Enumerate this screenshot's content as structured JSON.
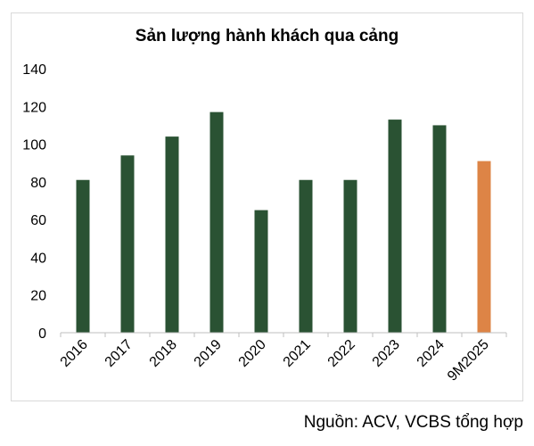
{
  "chart_data": {
    "type": "bar",
    "title": "Sản lượng hành khách qua cảng",
    "categories": [
      "2016",
      "2017",
      "2018",
      "2019",
      "2020",
      "2021",
      "2022",
      "2023",
      "2024",
      "9M2025"
    ],
    "values": [
      81,
      94,
      104,
      117,
      65,
      81,
      81,
      113,
      110,
      91
    ],
    "ylim": [
      0,
      140
    ],
    "yticks": [
      0,
      20,
      40,
      60,
      80,
      100,
      120,
      140
    ],
    "xlabel": "",
    "ylabel": "",
    "grid": false,
    "colors": {
      "bar": "#2a5233",
      "highlight": "#dd8446",
      "axis": "#bfbfbf"
    },
    "highlight_index": 9
  },
  "source": "Nguồn: ACV, VCBS tổng hợp"
}
